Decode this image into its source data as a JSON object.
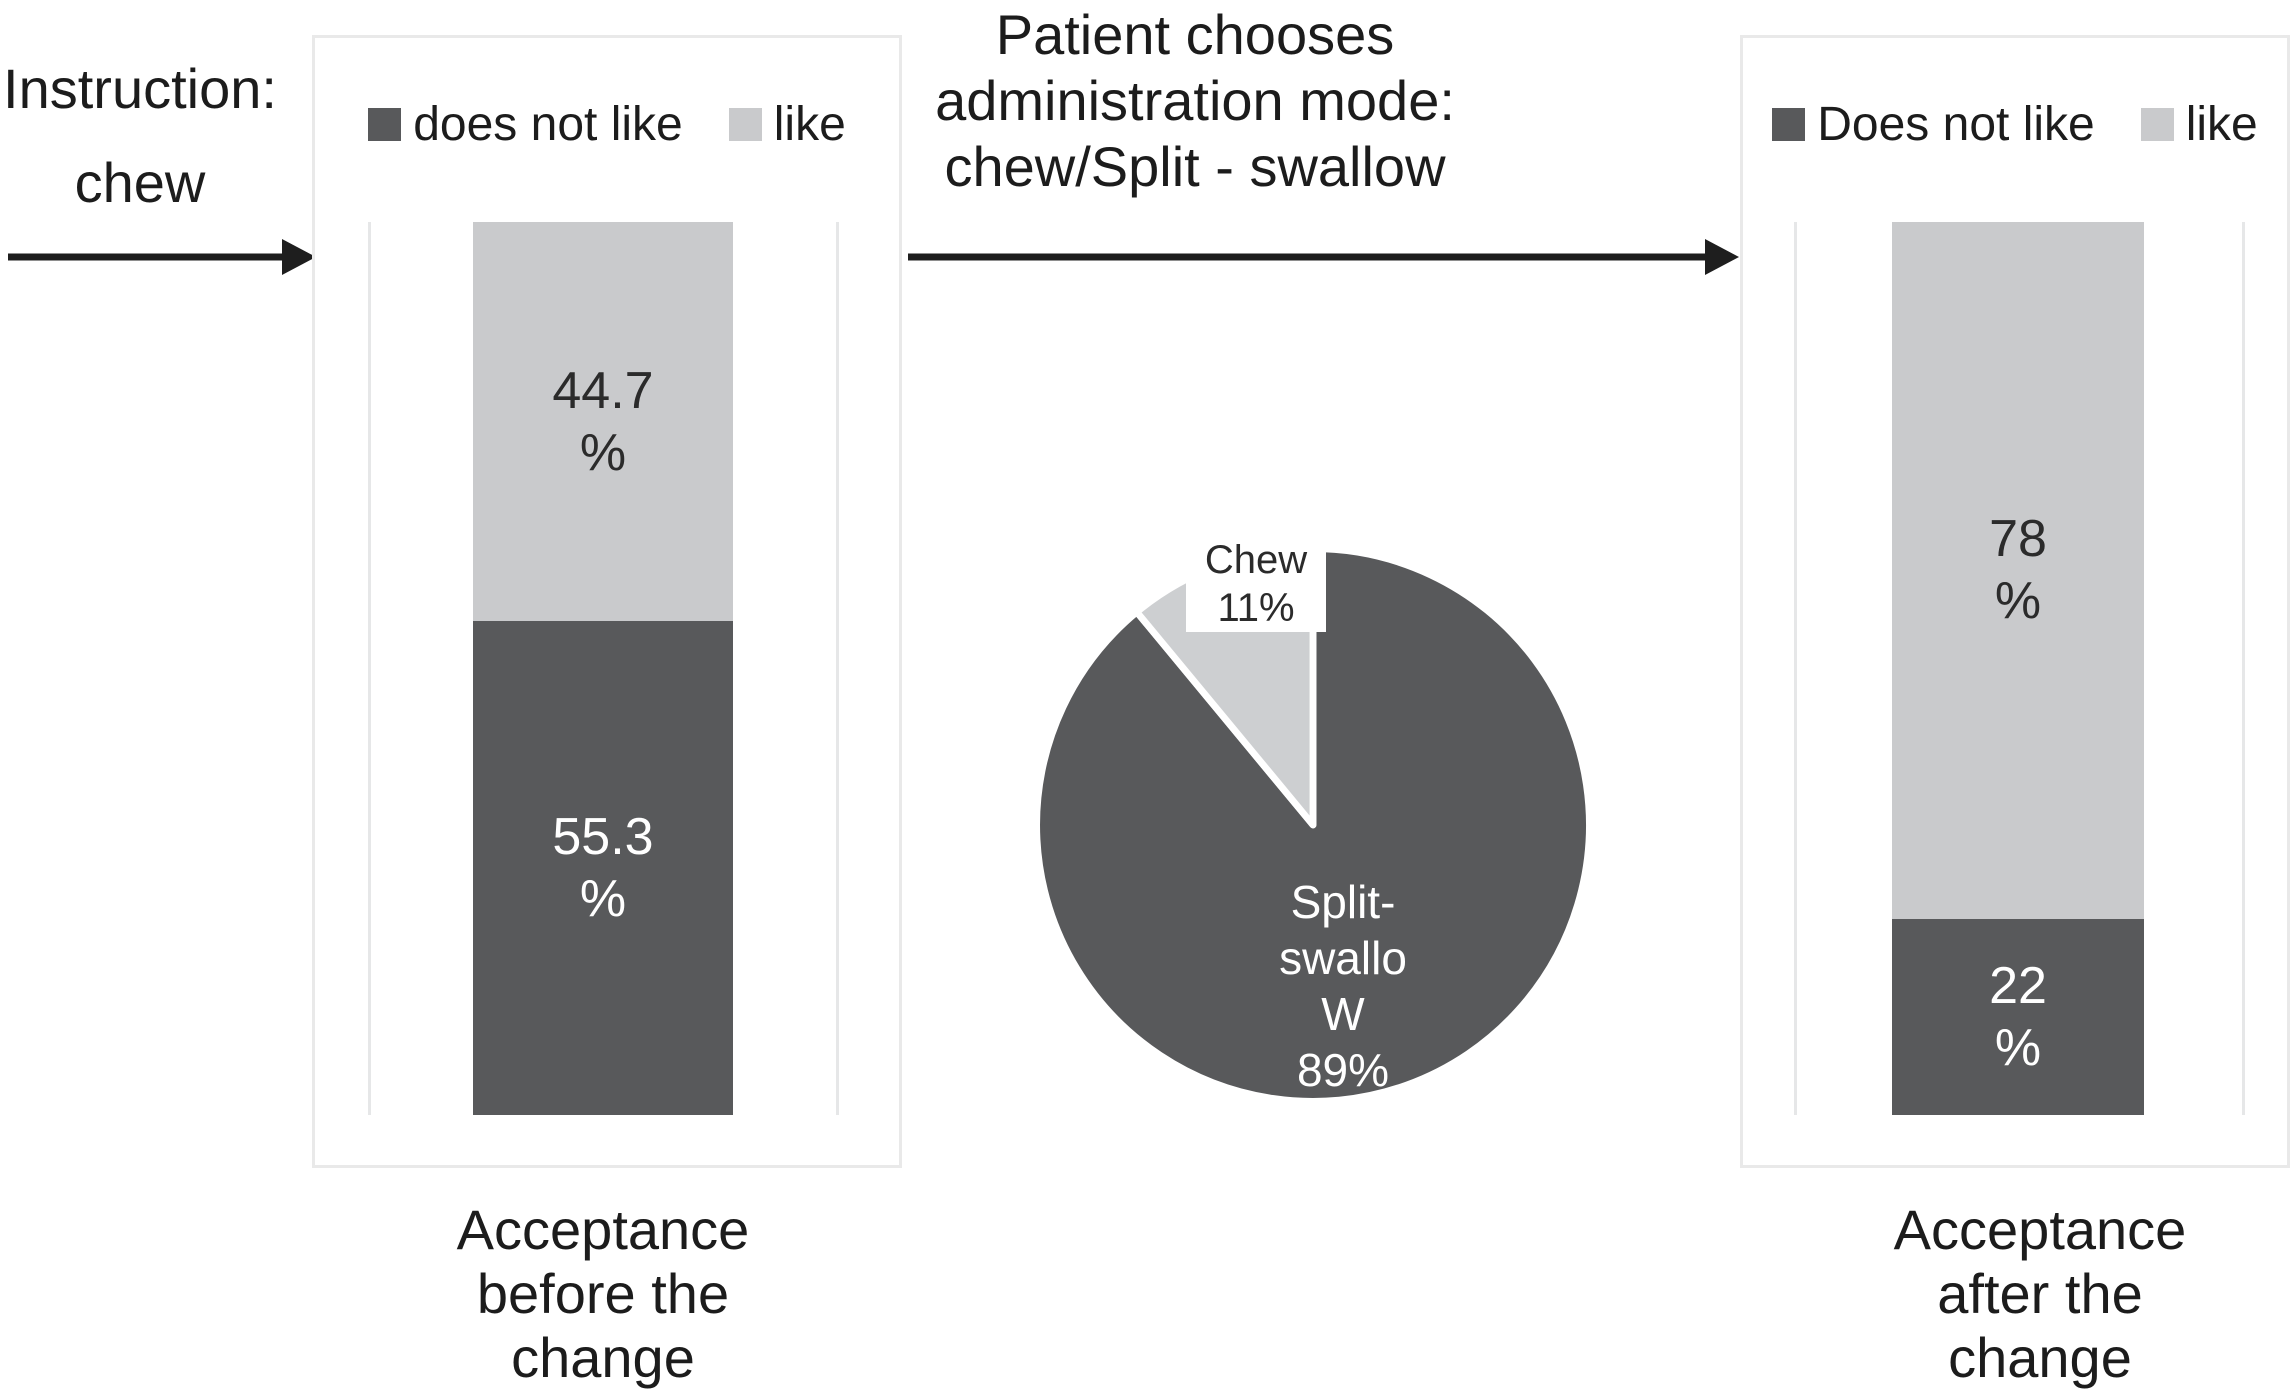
{
  "palette": {
    "dark": "#58595b",
    "light": "#c9cacc",
    "pie_light": "#cdcfd1",
    "arrow": "#1e1e1e",
    "panel_border": "#e9e9e9"
  },
  "instruction": {
    "lines": [
      "Instruction:",
      "chew"
    ]
  },
  "mid_title": {
    "lines": [
      "Patient chooses",
      "administration mode:",
      "chew/Split - swallow"
    ]
  },
  "charts": {
    "before": {
      "legend": [
        {
          "label": "does not like",
          "color_key": "dark"
        },
        {
          "label": "like",
          "color_key": "light"
        }
      ],
      "segments": [
        {
          "name": "like",
          "value": 44.7,
          "label_lines": [
            "44.7",
            "%"
          ],
          "color_key": "light"
        },
        {
          "name": "does not like",
          "value": 55.3,
          "label_lines": [
            "55.3",
            "%"
          ],
          "color_key": "dark"
        }
      ],
      "caption_lines": [
        "Acceptance",
        "before the",
        "change"
      ]
    },
    "after": {
      "legend": [
        {
          "label": "Does not like",
          "color_key": "dark"
        },
        {
          "label": "like",
          "color_key": "light"
        }
      ],
      "segments": [
        {
          "name": "like",
          "value": 78,
          "label_lines": [
            "78",
            "%"
          ],
          "color_key": "light"
        },
        {
          "name": "Does not like",
          "value": 22,
          "label_lines": [
            "22",
            "%"
          ],
          "color_key": "dark"
        }
      ],
      "caption_lines": [
        "Acceptance",
        "after the",
        "change"
      ]
    }
  },
  "pie": {
    "chew_label_lines": [
      "Chew",
      "11%"
    ],
    "split_label_lines": [
      "Split-",
      "swallo",
      "W",
      "89%"
    ]
  },
  "chart_data": [
    {
      "type": "bar",
      "subtype": "stacked_column_100",
      "title": "Acceptance before the change",
      "categories": [
        "Acceptance before the change"
      ],
      "series": [
        {
          "name": "does not like",
          "values": [
            55.3
          ]
        },
        {
          "name": "like",
          "values": [
            44.7
          ]
        }
      ],
      "unit": "%",
      "ylim": [
        0,
        100
      ],
      "legend_position": "top",
      "grid": false
    },
    {
      "type": "pie",
      "title": "Patient chooses administration mode: chew/Split - swallow",
      "labels": [
        "Split-swallow",
        "Chew"
      ],
      "values": [
        89,
        11
      ],
      "unit": "%",
      "start_angle_deg": 0,
      "direction": "clockwise"
    },
    {
      "type": "bar",
      "subtype": "stacked_column_100",
      "title": "Acceptance after the change",
      "categories": [
        "Acceptance after the change"
      ],
      "series": [
        {
          "name": "Does not like",
          "values": [
            22
          ]
        },
        {
          "name": "like",
          "values": [
            78
          ]
        }
      ],
      "unit": "%",
      "ylim": [
        0,
        100
      ],
      "legend_position": "top",
      "grid": false
    }
  ]
}
